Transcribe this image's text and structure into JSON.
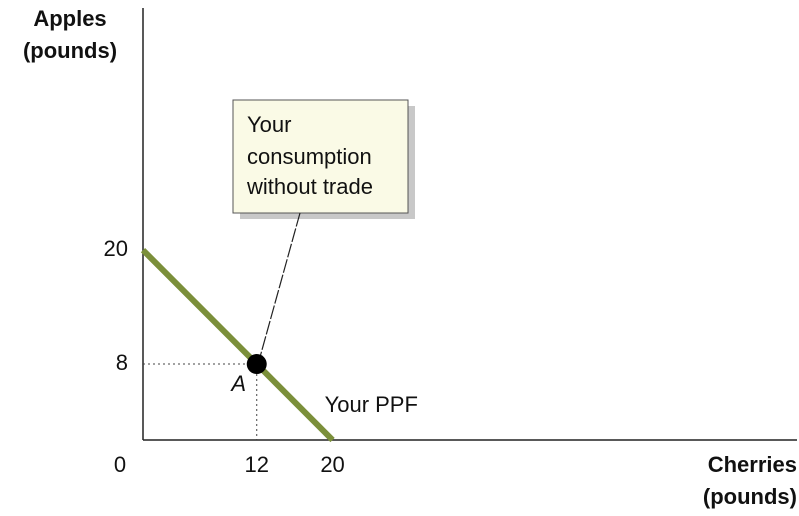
{
  "chart_data": {
    "type": "line",
    "y_label": [
      "Apples",
      "(pounds)"
    ],
    "x_label": [
      "Cherries",
      "(pounds)"
    ],
    "xlim": [
      0,
      69
    ],
    "ylim": [
      0,
      45.5
    ],
    "xticks": [
      0,
      12,
      20
    ],
    "yticks": [
      8,
      20
    ],
    "grid": false,
    "series": [
      {
        "name": "Your PPF",
        "color": "#7b8f3a",
        "x": [
          0,
          20
        ],
        "values": [
          20,
          0
        ]
      }
    ],
    "points": [
      {
        "label": "A",
        "x": 12,
        "y": 8,
        "color": "#000000"
      }
    ],
    "annotation": [
      "Your",
      "consumption",
      "without trade"
    ]
  }
}
